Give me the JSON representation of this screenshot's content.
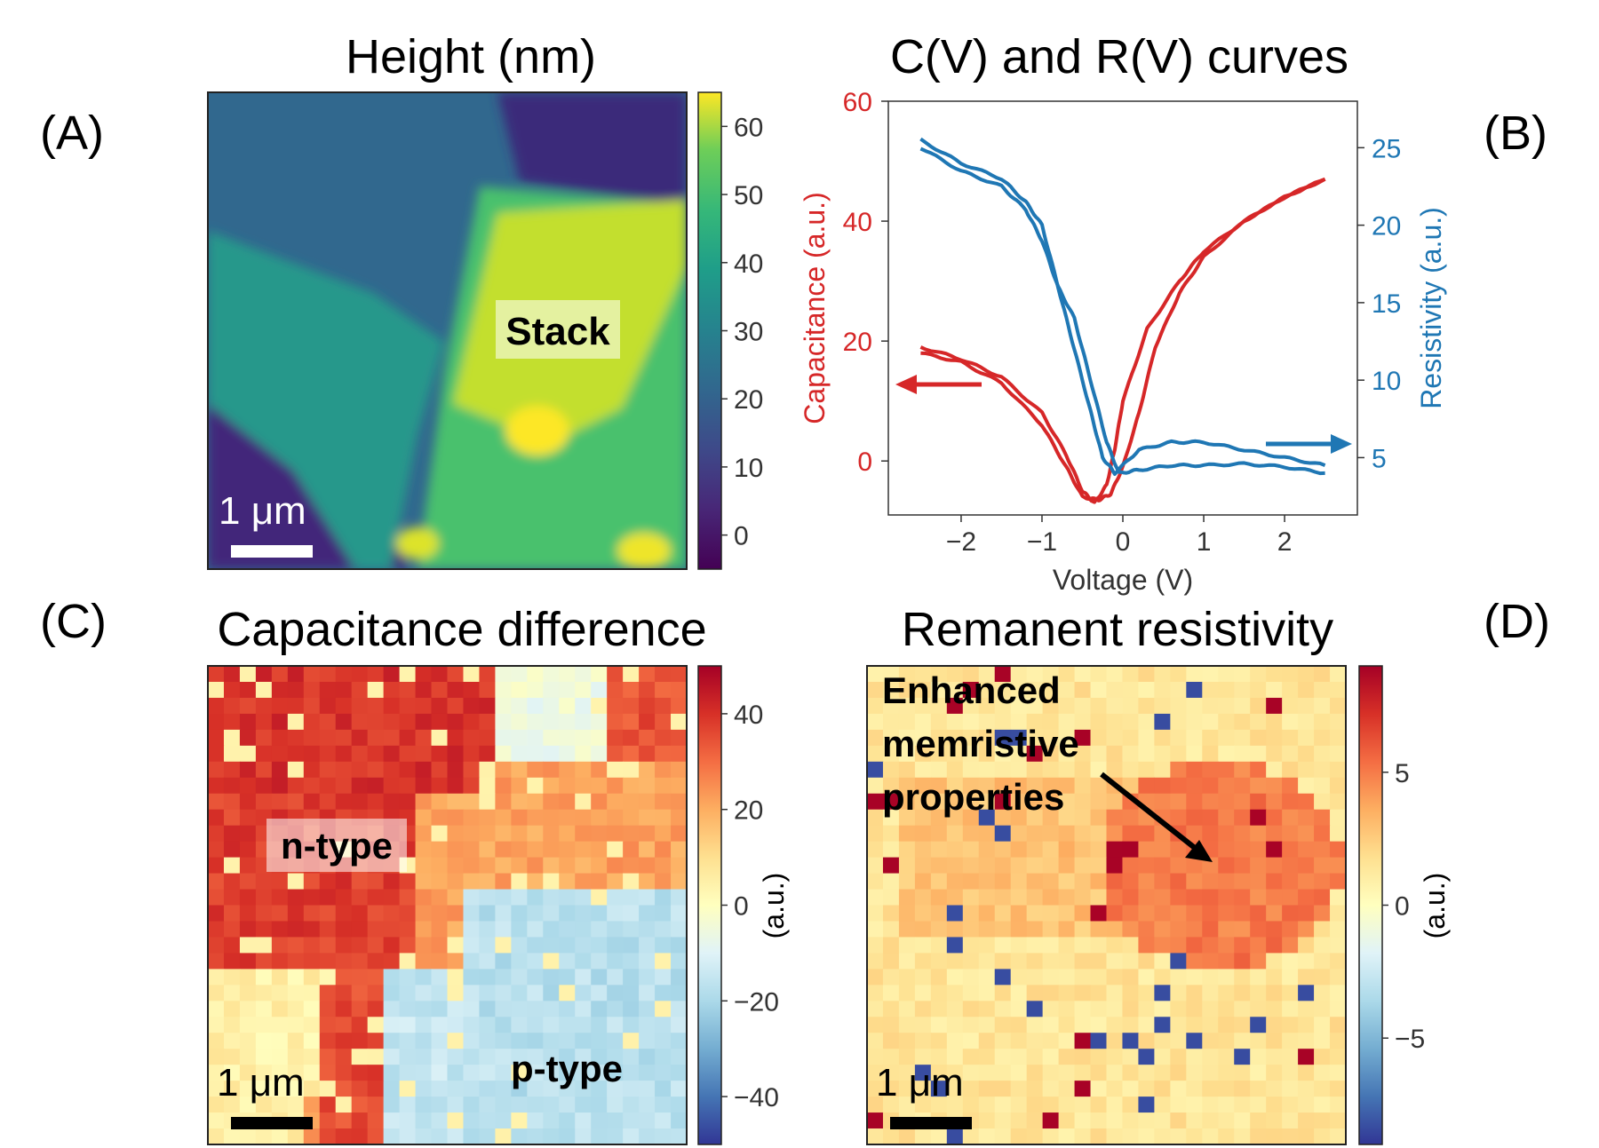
{
  "panels": {
    "A": {
      "label": "(A)",
      "title": "Height (nm)",
      "annotation": "Stack",
      "scale_bar": "1 μm",
      "colormap": "viridis",
      "colorbar": {
        "ticks": [
          "60",
          "50",
          "40",
          "30",
          "20",
          "10",
          "0"
        ],
        "range": [
          -5,
          65
        ]
      }
    },
    "B": {
      "label": "(B)",
      "title": "C(V) and R(V) curves",
      "xlabel": "Voltage (V)",
      "ylabel_left": "Capacitance (a.u.)",
      "ylabel_right": "Resistivity (a.u.)",
      "xticks": [
        "−2",
        "−1",
        "0",
        "1",
        "2"
      ],
      "yticks_left": [
        "60",
        "40",
        "20",
        "0"
      ],
      "yticks_right": [
        "25",
        "20",
        "15",
        "10",
        "5"
      ],
      "left_color": "#d62728",
      "right_color": "#1f77b4"
    },
    "C": {
      "label": "(C)",
      "title": "Capacitance difference",
      "annotations": [
        "n-type",
        "p-type"
      ],
      "scale_bar": "1 μm",
      "colormap": "RdYlBu_r",
      "colorbar": {
        "ticks": [
          "40",
          "20",
          "0",
          "−20",
          "−40"
        ],
        "label": "(a.u.)",
        "range": [
          -50,
          50
        ]
      }
    },
    "D": {
      "label": "(D)",
      "title": "Remanent resistivity",
      "annotation_lines": [
        "Enhanced",
        "memristive",
        "properties"
      ],
      "scale_bar": "1 μm",
      "colormap": "RdYlBu_r",
      "colorbar": {
        "ticks": [
          "5",
          "0",
          "−5"
        ],
        "label": "(a.u.)",
        "range": [
          -9,
          9
        ]
      }
    }
  },
  "chart_data": {
    "type": "line",
    "title": "C(V) and R(V) curves",
    "xlabel": "Voltage (V)",
    "xlim": [
      -2.9,
      2.9
    ],
    "y_left": {
      "label": "Capacitance (a.u.)",
      "lim": [
        -9,
        60
      ]
    },
    "y_right": {
      "label": "Resistivity (a.u.)",
      "lim": [
        1.3,
        28
      ]
    },
    "series": [
      {
        "name": "Capacitance (a.u.)",
        "axis": "left",
        "color": "#d62728",
        "branches": [
          {
            "x": [
              -2.5,
              -2.0,
              -1.5,
              -1.0,
              -0.7,
              -0.5,
              -0.35,
              -0.2,
              -0.1,
              0.0,
              0.3,
              0.7,
              1.0,
              1.5,
              2.0,
              2.5
            ],
            "y": [
              19,
              17,
              14,
              8,
              1,
              -5,
              -7,
              -4,
              2,
              10,
              22,
              30,
              35,
              40,
              44,
              47
            ]
          },
          {
            "x": [
              -2.5,
              -2.0,
              -1.5,
              -1.0,
              -0.7,
              -0.5,
              -0.3,
              -0.15,
              0.0,
              0.2,
              0.4,
              0.7,
              1.0,
              1.5,
              2.0,
              2.5
            ],
            "y": [
              18,
              16.5,
              13,
              6,
              -1,
              -6,
              -6.5,
              -5.5,
              -1,
              8,
              19,
              28,
              34,
              40,
              44,
              47
            ]
          }
        ]
      },
      {
        "name": "Resistivity (a.u.)",
        "axis": "right",
        "color": "#1f77b4",
        "branches": [
          {
            "x": [
              -2.5,
              -2.0,
              -1.5,
              -1.2,
              -1.0,
              -0.8,
              -0.6,
              -0.4,
              -0.25,
              -0.1,
              0.2,
              0.6,
              1.0,
              1.5,
              2.0,
              2.5
            ],
            "y": [
              25.5,
              24,
              23,
              21.5,
              20,
              16,
              12,
              8,
              5,
              4,
              5.5,
              6,
              6,
              5.5,
              5,
              4.5
            ]
          },
          {
            "x": [
              -2.5,
              -2.0,
              -1.5,
              -1.2,
              -1.0,
              -0.8,
              -0.6,
              -0.4,
              -0.2,
              -0.05,
              0.2,
              0.6,
              1.0,
              1.5,
              2.0,
              2.5
            ],
            "y": [
              25,
              23.5,
              22.5,
              21,
              19,
              16,
              14,
              10,
              6,
              4,
              4.2,
              4.5,
              4.5,
              4.6,
              4.4,
              4
            ]
          }
        ]
      }
    ]
  }
}
